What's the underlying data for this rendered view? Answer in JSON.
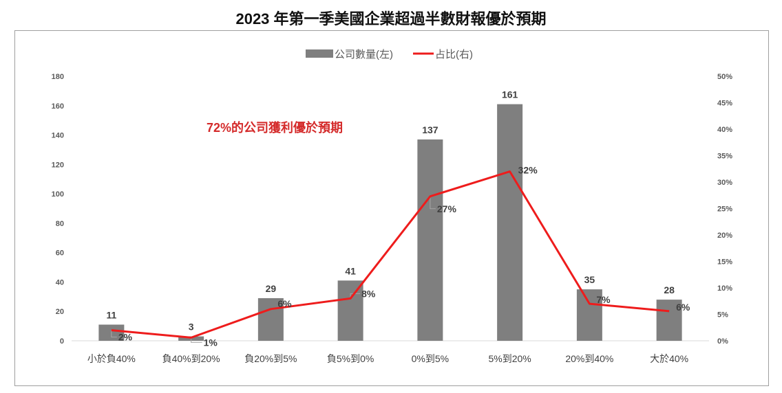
{
  "title": "2023 年第一季美國企業超過半數財報優於預期",
  "annotation": "72%的公司獲利優於預期",
  "colors": {
    "bar": "#7f7f7f",
    "line": "#ee1c1c",
    "annotation": "#d42a2a"
  },
  "chart_data": {
    "type": "bar",
    "combo": "bar+line",
    "categories": [
      "小於負40%",
      "負40%到20%",
      "負20%到5%",
      "負5%到0%",
      "0%到5%",
      "5%到20%",
      "20%到40%",
      "大於40%"
    ],
    "series": [
      {
        "name": "公司數量(左)",
        "type": "bar",
        "axis": "left",
        "values": [
          11,
          3,
          29,
          41,
          137,
          161,
          35,
          28
        ],
        "labels": [
          "11",
          "3",
          "29",
          "41",
          "137",
          "161",
          "35",
          "28"
        ]
      },
      {
        "name": "占比(右)",
        "type": "line",
        "axis": "right",
        "values": [
          2,
          0.6,
          6,
          8,
          27.3,
          32,
          7,
          5.6
        ],
        "labels": [
          "2%",
          "1%",
          "6%",
          "8%",
          "27%",
          "32%",
          "7%",
          "6%"
        ]
      }
    ],
    "y_left": {
      "min": 0,
      "max": 180,
      "ticks": [
        "0",
        "20",
        "40",
        "60",
        "80",
        "100",
        "120",
        "140",
        "160",
        "180"
      ]
    },
    "y_right": {
      "min": 0,
      "max": 50,
      "ticks": [
        "0%",
        "5%",
        "10%",
        "15%",
        "20%",
        "25%",
        "30%",
        "35%",
        "40%",
        "45%",
        "50%"
      ]
    },
    "legend_position": "top-center",
    "grid": false
  }
}
